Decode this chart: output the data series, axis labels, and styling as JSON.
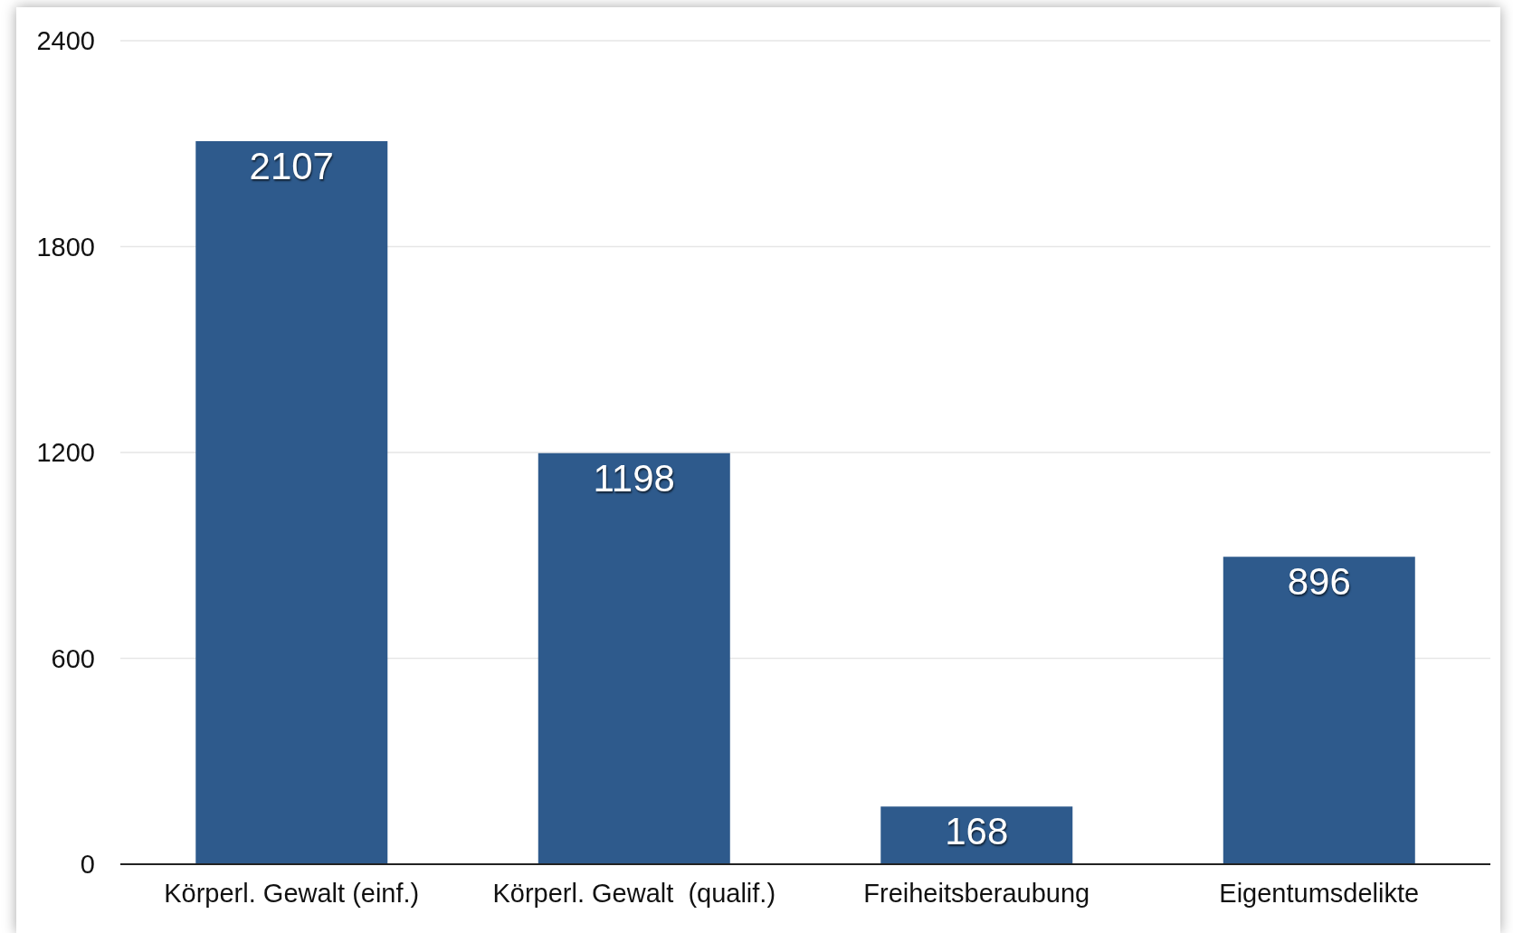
{
  "chart_data": {
    "type": "bar",
    "categories": [
      "Körperl. Gewalt (einf.)",
      "Körperl. Gewalt  (qualif.)",
      "Freiheitsberaubung",
      "Eigentumsdelikte"
    ],
    "values": [
      2107,
      1198,
      168,
      896
    ],
    "color": "#2e5a8c",
    "ylim": [
      0,
      2400
    ],
    "yticks": [
      0,
      600,
      1200,
      1800,
      2400
    ],
    "grid": "y",
    "data_labels": true
  }
}
